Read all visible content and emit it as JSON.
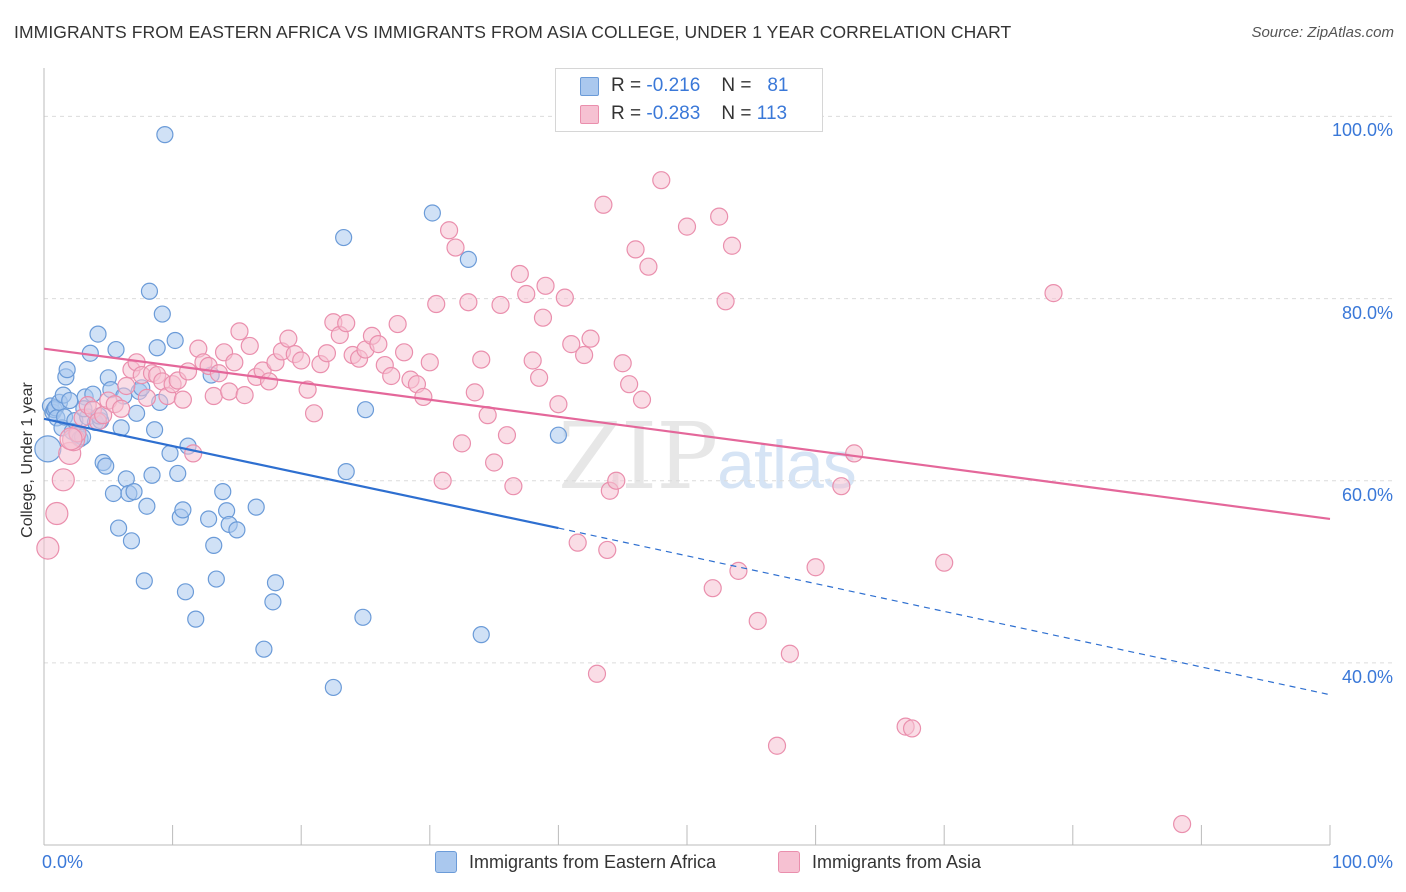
{
  "title": "IMMIGRANTS FROM EASTERN AFRICA VS IMMIGRANTS FROM ASIA COLLEGE, UNDER 1 YEAR CORRELATION CHART",
  "source": "Source: ZipAtlas.com",
  "watermark": {
    "zip": "ZIP",
    "atlas": "atlas"
  },
  "legend": {
    "rows": [
      {
        "r_label": "R =",
        "r_value": "-0.216",
        "n_label": "N =",
        "n_value": "81"
      },
      {
        "r_label": "R =",
        "r_value": "-0.283",
        "n_label": "N =",
        "n_value": "113"
      }
    ]
  },
  "colors": {
    "blue_fill": "#aac8ee",
    "blue_stroke": "#6b9bd8",
    "blue_line": "#2e6fd0",
    "pink_fill": "#f6c1d2",
    "pink_stroke": "#ea8fad",
    "pink_line": "#e4679a",
    "tick_text": "#3a78d8"
  },
  "chart_data": {
    "type": "scatter",
    "title": "IMMIGRANTS FROM EASTERN AFRICA VS IMMIGRANTS FROM ASIA COLLEGE, UNDER 1 YEAR CORRELATION CHART",
    "xlabel": "",
    "ylabel": "College, Under 1 year",
    "xlim": [
      0,
      100
    ],
    "ylim": [
      20,
      104
    ],
    "x_tick_labels": [
      "0.0%",
      "100.0%"
    ],
    "y_tick_labels": [
      "100.0%",
      "80.0%",
      "60.0%",
      "40.0%"
    ],
    "y_ticks": [
      100,
      80,
      60,
      40
    ],
    "grid": true,
    "legend_position": "top-center",
    "series": [
      {
        "name": "Immigrants from Eastern Africa",
        "color": "#6b9bd8",
        "r": -0.216,
        "n": 81,
        "trend": {
          "x0": 0,
          "y0": 66.8,
          "x1": 40,
          "y1": 54.8,
          "dash_to_x": 100,
          "dash_to_y": 36.5
        },
        "points": [
          [
            0.3,
            63.5
          ],
          [
            0.5,
            68.2
          ],
          [
            0.7,
            67.5
          ],
          [
            0.8,
            67.8
          ],
          [
            0.9,
            68.0
          ],
          [
            1.0,
            66.9
          ],
          [
            1.2,
            68.6
          ],
          [
            1.4,
            65.8
          ],
          [
            1.5,
            69.4
          ],
          [
            1.6,
            67.0
          ],
          [
            1.7,
            71.4
          ],
          [
            1.8,
            72.2
          ],
          [
            2.0,
            68.8
          ],
          [
            2.2,
            65.4
          ],
          [
            2.4,
            66.6
          ],
          [
            2.6,
            65.0
          ],
          [
            2.8,
            64.6
          ],
          [
            3.0,
            64.8
          ],
          [
            3.2,
            69.2
          ],
          [
            3.4,
            67.0
          ],
          [
            3.6,
            74.0
          ],
          [
            3.8,
            69.5
          ],
          [
            4.0,
            66.4
          ],
          [
            4.2,
            76.1
          ],
          [
            4.4,
            66.6
          ],
          [
            4.6,
            62.0
          ],
          [
            4.8,
            61.6
          ],
          [
            5.0,
            71.3
          ],
          [
            5.2,
            70.0
          ],
          [
            5.4,
            58.6
          ],
          [
            5.6,
            74.4
          ],
          [
            5.8,
            54.8
          ],
          [
            6.0,
            65.8
          ],
          [
            6.2,
            69.3
          ],
          [
            6.4,
            60.2
          ],
          [
            6.6,
            58.6
          ],
          [
            6.8,
            53.4
          ],
          [
            7.0,
            58.8
          ],
          [
            7.2,
            67.4
          ],
          [
            7.4,
            69.8
          ],
          [
            7.6,
            70.2
          ],
          [
            7.8,
            49.0
          ],
          [
            8.0,
            57.2
          ],
          [
            8.2,
            80.8
          ],
          [
            8.4,
            60.6
          ],
          [
            8.6,
            65.6
          ],
          [
            8.8,
            74.6
          ],
          [
            9.0,
            68.6
          ],
          [
            9.2,
            78.3
          ],
          [
            9.4,
            98.0
          ],
          [
            9.8,
            63.0
          ],
          [
            10.2,
            75.4
          ],
          [
            10.4,
            60.8
          ],
          [
            10.6,
            56.0
          ],
          [
            10.8,
            56.8
          ],
          [
            11.0,
            47.8
          ],
          [
            11.2,
            63.8
          ],
          [
            11.8,
            44.8
          ],
          [
            12.8,
            55.8
          ],
          [
            13.0,
            71.6
          ],
          [
            13.2,
            52.9
          ],
          [
            13.4,
            49.2
          ],
          [
            13.9,
            58.8
          ],
          [
            14.2,
            56.7
          ],
          [
            14.4,
            55.2
          ],
          [
            15.0,
            54.6
          ],
          [
            16.5,
            57.1
          ],
          [
            17.1,
            41.5
          ],
          [
            17.8,
            46.7
          ],
          [
            18.0,
            48.8
          ],
          [
            22.5,
            37.3
          ],
          [
            23.3,
            86.7
          ],
          [
            23.5,
            61.0
          ],
          [
            24.8,
            45.0
          ],
          [
            25.0,
            67.8
          ],
          [
            30.2,
            89.4
          ],
          [
            33.0,
            84.3
          ],
          [
            34.0,
            43.1
          ],
          [
            40.0,
            65.0
          ],
          [
            4.3,
            67.1
          ],
          [
            3.1,
            67.9
          ]
        ]
      },
      {
        "name": "Immigrants from Asia",
        "color": "#ea8fad",
        "r": -0.283,
        "n": 113,
        "trend": {
          "x0": 0,
          "y0": 74.5,
          "x1": 100,
          "y1": 55.8
        },
        "points": [
          [
            0.3,
            52.6
          ],
          [
            1.0,
            56.4
          ],
          [
            1.5,
            60.1
          ],
          [
            2.0,
            63.0
          ],
          [
            2.3,
            64.5
          ],
          [
            2.6,
            65.2
          ],
          [
            3.0,
            66.9
          ],
          [
            3.4,
            68.3
          ],
          [
            3.8,
            67.8
          ],
          [
            4.2,
            66.5
          ],
          [
            4.6,
            67.2
          ],
          [
            5.0,
            68.8
          ],
          [
            5.5,
            68.4
          ],
          [
            6.0,
            67.9
          ],
          [
            6.4,
            70.4
          ],
          [
            6.8,
            72.2
          ],
          [
            7.2,
            73.0
          ],
          [
            7.6,
            71.6
          ],
          [
            8.0,
            69.1
          ],
          [
            8.4,
            71.8
          ],
          [
            8.8,
            71.6
          ],
          [
            9.2,
            70.9
          ],
          [
            9.6,
            69.3
          ],
          [
            10.0,
            70.6
          ],
          [
            10.4,
            71.0
          ],
          [
            10.8,
            68.9
          ],
          [
            11.2,
            72.0
          ],
          [
            11.6,
            63.0
          ],
          [
            12.0,
            74.5
          ],
          [
            12.4,
            73.0
          ],
          [
            12.8,
            72.6
          ],
          [
            13.2,
            69.3
          ],
          [
            13.6,
            71.8
          ],
          [
            14.0,
            74.1
          ],
          [
            14.4,
            69.8
          ],
          [
            14.8,
            73.0
          ],
          [
            15.2,
            76.4
          ],
          [
            15.6,
            69.4
          ],
          [
            16.0,
            74.8
          ],
          [
            16.5,
            71.4
          ],
          [
            17.0,
            72.1
          ],
          [
            17.5,
            70.9
          ],
          [
            18.0,
            73.0
          ],
          [
            18.5,
            74.2
          ],
          [
            19.0,
            75.6
          ],
          [
            19.5,
            73.9
          ],
          [
            20.0,
            73.2
          ],
          [
            20.5,
            70.0
          ],
          [
            21.0,
            67.4
          ],
          [
            21.5,
            72.8
          ],
          [
            22.0,
            74.0
          ],
          [
            22.5,
            77.4
          ],
          [
            23.0,
            76.0
          ],
          [
            23.5,
            77.3
          ],
          [
            24.0,
            73.8
          ],
          [
            24.5,
            73.4
          ],
          [
            25.0,
            74.4
          ],
          [
            25.5,
            75.9
          ],
          [
            26.0,
            75.0
          ],
          [
            26.5,
            72.7
          ],
          [
            27.0,
            71.5
          ],
          [
            27.5,
            77.2
          ],
          [
            28.0,
            74.1
          ],
          [
            28.5,
            71.1
          ],
          [
            29.0,
            70.6
          ],
          [
            29.5,
            69.2
          ],
          [
            30.0,
            73.0
          ],
          [
            30.5,
            79.4
          ],
          [
            31.0,
            60.0
          ],
          [
            31.5,
            87.5
          ],
          [
            32.0,
            85.6
          ],
          [
            32.5,
            64.1
          ],
          [
            33.0,
            79.6
          ],
          [
            33.5,
            69.7
          ],
          [
            34.0,
            73.3
          ],
          [
            34.5,
            67.2
          ],
          [
            35.0,
            62.0
          ],
          [
            35.5,
            79.3
          ],
          [
            36.0,
            65.0
          ],
          [
            36.5,
            59.4
          ],
          [
            37.0,
            82.7
          ],
          [
            37.5,
            80.5
          ],
          [
            38.0,
            73.2
          ],
          [
            38.5,
            71.3
          ],
          [
            38.8,
            77.9
          ],
          [
            39.0,
            81.4
          ],
          [
            40.0,
            68.4
          ],
          [
            40.5,
            80.1
          ],
          [
            41.0,
            75.0
          ],
          [
            41.5,
            53.2
          ],
          [
            42.0,
            73.8
          ],
          [
            42.5,
            75.6
          ],
          [
            43.0,
            38.8
          ],
          [
            43.5,
            90.3
          ],
          [
            43.8,
            52.4
          ],
          [
            44.0,
            58.9
          ],
          [
            44.5,
            60.0
          ],
          [
            45.0,
            72.9
          ],
          [
            45.5,
            70.6
          ],
          [
            46.0,
            85.4
          ],
          [
            46.5,
            68.9
          ],
          [
            47.0,
            83.5
          ],
          [
            48.0,
            93.0
          ],
          [
            50.0,
            87.9
          ],
          [
            52.0,
            48.2
          ],
          [
            52.5,
            89.0
          ],
          [
            53.0,
            79.7
          ],
          [
            53.5,
            85.8
          ],
          [
            54.0,
            50.1
          ],
          [
            55.5,
            44.6
          ],
          [
            57.0,
            30.9
          ],
          [
            58.0,
            41.0
          ],
          [
            60.0,
            50.5
          ],
          [
            62.0,
            59.4
          ],
          [
            63.0,
            63.0
          ],
          [
            67.0,
            33.0
          ],
          [
            67.5,
            32.8
          ],
          [
            70.0,
            51.0
          ],
          [
            78.5,
            80.6
          ],
          [
            88.5,
            22.3
          ],
          [
            2.1,
            64.6
          ]
        ]
      }
    ]
  },
  "bottom_legend": [
    {
      "label": "Immigrants from Eastern Africa"
    },
    {
      "label": "Immigrants from Asia"
    }
  ]
}
